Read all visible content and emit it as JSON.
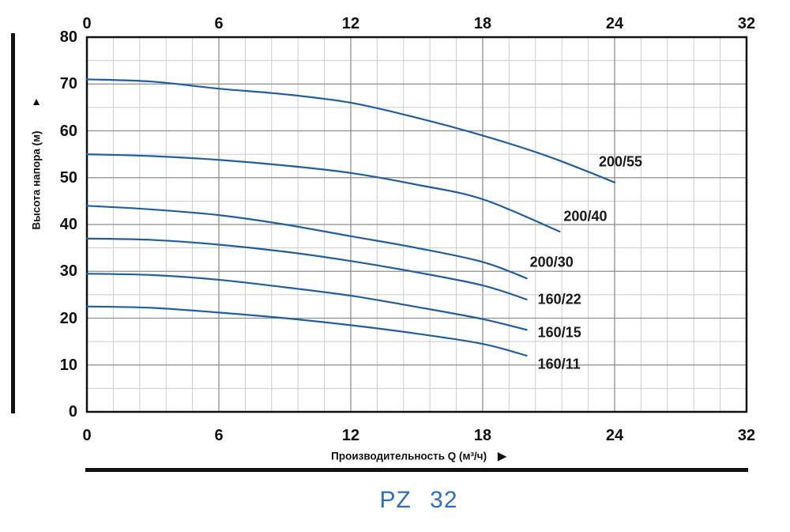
{
  "title": "PZ 32",
  "colors": {
    "curve_blue": "#1f5f9f",
    "title_blue": "#2d6fb8",
    "minor_grid": "#cccccc",
    "major_grid": "#8e8e8e",
    "frame": "#111111"
  },
  "chart_data": {
    "type": "line",
    "title": "PZ 32",
    "x_axis": {
      "label": "Производительность Q (м³/ч)",
      "ticks": [
        0,
        6,
        12,
        18,
        24,
        32
      ],
      "range": [
        0,
        32
      ],
      "tick_labels_shown": "top and bottom"
    },
    "y_axis": {
      "label": "Высота напора (м)",
      "ticks": [
        0,
        10,
        20,
        30,
        40,
        50,
        60,
        70,
        80
      ],
      "range": [
        0,
        80
      ]
    },
    "grid": "on",
    "minor_x_divisions": 5,
    "minor_y_divisions": 2,
    "legend_position": "labels at curve ends",
    "line_color": "#1f5f9f",
    "series": [
      {
        "name": "200/55",
        "points": [
          [
            0,
            71
          ],
          [
            3,
            70.5
          ],
          [
            6,
            69
          ],
          [
            9,
            67.8
          ],
          [
            12,
            66
          ],
          [
            15,
            62.8
          ],
          [
            18,
            59
          ],
          [
            21,
            54.5
          ],
          [
            24,
            49
          ]
        ]
      },
      {
        "name": "200/40",
        "points": [
          [
            0,
            55
          ],
          [
            3,
            54.6
          ],
          [
            6,
            53.8
          ],
          [
            9,
            52.6
          ],
          [
            12,
            51
          ],
          [
            15,
            48.5
          ],
          [
            18,
            45.4
          ],
          [
            21.5,
            38.5
          ]
        ]
      },
      {
        "name": "200/30",
        "points": [
          [
            0,
            44
          ],
          [
            3,
            43.2
          ],
          [
            6,
            42
          ],
          [
            9,
            40
          ],
          [
            12,
            37.5
          ],
          [
            15,
            35
          ],
          [
            18,
            32
          ],
          [
            20,
            28.5
          ]
        ]
      },
      {
        "name": "160/22",
        "points": [
          [
            0,
            37
          ],
          [
            3,
            36.7
          ],
          [
            6,
            35.7
          ],
          [
            9,
            34.2
          ],
          [
            12,
            32.2
          ],
          [
            15,
            29.8
          ],
          [
            18,
            27
          ],
          [
            20,
            24
          ]
        ]
      },
      {
        "name": "160/15",
        "points": [
          [
            0,
            29.5
          ],
          [
            3,
            29.2
          ],
          [
            6,
            28.2
          ],
          [
            9,
            26.6
          ],
          [
            12,
            24.8
          ],
          [
            15,
            22.4
          ],
          [
            18,
            19.8
          ],
          [
            20,
            17.5
          ]
        ]
      },
      {
        "name": "160/11",
        "points": [
          [
            0,
            22.5
          ],
          [
            3,
            22.2
          ],
          [
            6,
            21.2
          ],
          [
            9,
            20
          ],
          [
            12,
            18.5
          ],
          [
            15,
            16.7
          ],
          [
            18,
            14.5
          ],
          [
            20,
            12
          ]
        ]
      }
    ]
  }
}
